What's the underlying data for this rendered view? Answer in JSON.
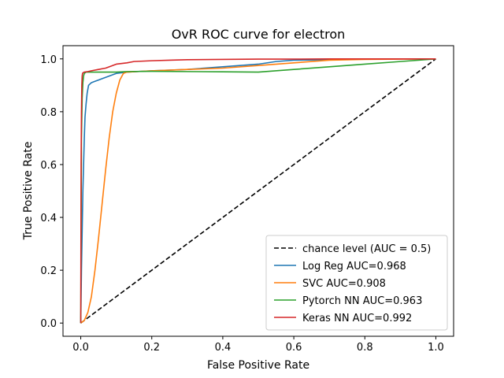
{
  "chart_data": {
    "type": "line",
    "title": "OvR ROC curve for electron",
    "xlabel": "False Positive Rate",
    "ylabel": "True Positive Rate",
    "xlim": [
      -0.05,
      1.05
    ],
    "ylim": [
      -0.05,
      1.05
    ],
    "xticks": [
      0.0,
      0.2,
      0.4,
      0.6,
      0.8,
      1.0
    ],
    "yticks": [
      0.0,
      0.2,
      0.4,
      0.6,
      0.8,
      1.0
    ],
    "xtick_labels": [
      "0.0",
      "0.2",
      "0.4",
      "0.6",
      "0.8",
      "1.0"
    ],
    "ytick_labels": [
      "0.0",
      "0.2",
      "0.4",
      "0.6",
      "0.8",
      "1.0"
    ],
    "grid": false,
    "legend_position": "lower-right",
    "series": [
      {
        "name": "chance level (AUC = 0.5)",
        "color": "#000000",
        "dashed": true,
        "x": [
          0.0,
          1.0
        ],
        "y": [
          0.0,
          1.0
        ]
      },
      {
        "name": "Log Reg AUC=0.968",
        "color": "#1f77b4",
        "dashed": false,
        "x": [
          0.0,
          0.002,
          0.004,
          0.006,
          0.008,
          0.01,
          0.012,
          0.015,
          0.018,
          0.022,
          0.03,
          0.04,
          0.05,
          0.07,
          0.1,
          0.13,
          0.2,
          0.3,
          0.4,
          0.5,
          0.55,
          0.6,
          0.7,
          0.8,
          0.9,
          1.0
        ],
        "y": [
          0.0,
          0.2,
          0.35,
          0.5,
          0.6,
          0.7,
          0.78,
          0.83,
          0.87,
          0.9,
          0.91,
          0.915,
          0.92,
          0.93,
          0.945,
          0.95,
          0.955,
          0.96,
          0.97,
          0.98,
          0.99,
          0.995,
          0.997,
          0.999,
          1.0,
          1.0
        ]
      },
      {
        "name": "SVC AUC=0.908",
        "color": "#ff7f0e",
        "dashed": false,
        "x": [
          0.0,
          0.01,
          0.02,
          0.03,
          0.04,
          0.05,
          0.06,
          0.07,
          0.08,
          0.09,
          0.1,
          0.11,
          0.12,
          0.13,
          0.2,
          0.3,
          0.4,
          0.5,
          0.6,
          0.7,
          0.8,
          0.9,
          1.0
        ],
        "y": [
          0.0,
          0.01,
          0.04,
          0.1,
          0.2,
          0.32,
          0.45,
          0.58,
          0.7,
          0.8,
          0.87,
          0.92,
          0.945,
          0.95,
          0.955,
          0.96,
          0.965,
          0.975,
          0.985,
          0.995,
          0.998,
          0.999,
          1.0
        ]
      },
      {
        "name": "Pytorch NN AUC=0.963",
        "color": "#2ca02c",
        "dashed": false,
        "x": [
          0.0,
          0.002,
          0.004,
          0.006,
          0.008,
          0.01,
          0.013,
          0.015,
          0.1,
          0.13,
          0.2,
          0.3,
          0.4,
          0.5,
          0.6,
          0.7,
          0.8,
          0.9,
          1.0
        ],
        "y": [
          0.0,
          0.7,
          0.85,
          0.91,
          0.935,
          0.945,
          0.948,
          0.95,
          0.95,
          0.952,
          0.953,
          0.952,
          0.951,
          0.95,
          0.96,
          0.97,
          0.98,
          0.99,
          1.0
        ]
      },
      {
        "name": "Keras NN AUC=0.992",
        "color": "#d62728",
        "dashed": false,
        "x": [
          0.0,
          0.001,
          0.002,
          0.003,
          0.004,
          0.005,
          0.007,
          0.01,
          0.02,
          0.03,
          0.05,
          0.07,
          0.08,
          0.1,
          0.13,
          0.15,
          0.2,
          0.25,
          0.3,
          0.4,
          0.5,
          0.6,
          0.7,
          0.8,
          0.9,
          1.0
        ],
        "y": [
          0.0,
          0.6,
          0.8,
          0.9,
          0.935,
          0.945,
          0.948,
          0.95,
          0.952,
          0.955,
          0.96,
          0.965,
          0.97,
          0.98,
          0.985,
          0.99,
          0.993,
          0.995,
          0.997,
          0.998,
          0.999,
          0.999,
          1.0,
          1.0,
          1.0,
          1.0
        ]
      }
    ]
  }
}
